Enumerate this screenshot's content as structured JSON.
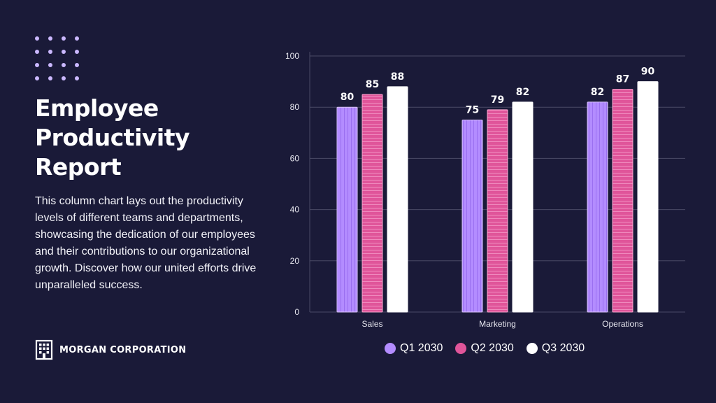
{
  "header": {
    "title": "Employee Productivity Report",
    "description": "This column chart lays out the productivity levels of different teams and departments, showcasing the dedication of our employees and their contributions to our organizational growth. Discover how our united efforts drive unparalleled success."
  },
  "brand": {
    "name": "MORGAN CORPORATION",
    "icon": "building-icon"
  },
  "colors": {
    "background": "#1a1a38",
    "q1": "#b38cff",
    "q2": "#e0559a",
    "q3": "#ffffff",
    "grid": "#4a4a66",
    "dots": "#cbb8ff"
  },
  "chart_data": {
    "type": "bar",
    "title": "Employee Productivity Report",
    "categories": [
      "Sales",
      "Marketing",
      "Operations"
    ],
    "series": [
      {
        "name": "Q1 2030",
        "values": [
          80,
          75,
          82
        ]
      },
      {
        "name": "Q2 2030",
        "values": [
          85,
          79,
          87
        ]
      },
      {
        "name": "Q3 2030",
        "values": [
          88,
          82,
          90
        ]
      }
    ],
    "ylim": [
      0,
      100
    ],
    "yticks": [
      0,
      20,
      40,
      60,
      80,
      100
    ],
    "xlabel": "",
    "ylabel": "",
    "grid": true,
    "legend": "bottom"
  }
}
